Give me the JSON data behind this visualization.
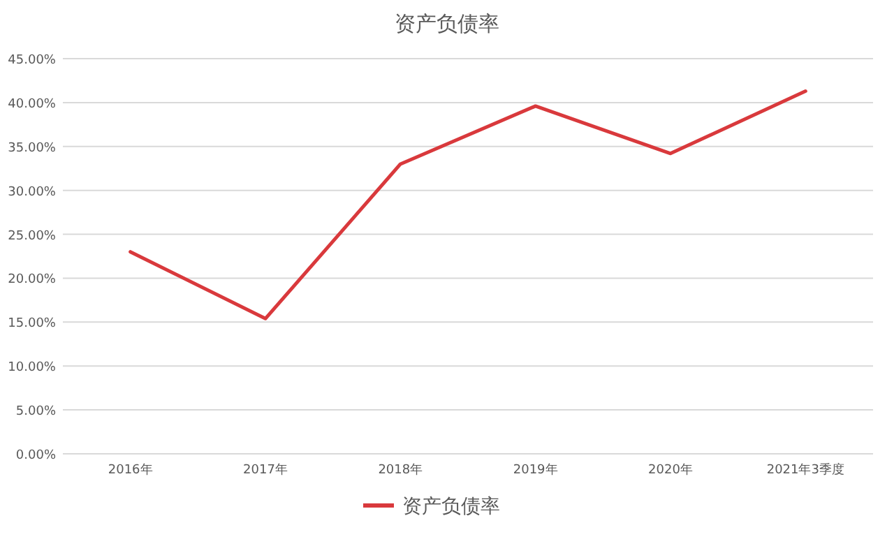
{
  "chart_data": {
    "type": "line",
    "title": "资产负债率",
    "categories": [
      "2016年",
      "2017年",
      "2018年",
      "2019年",
      "2020年",
      "2021年3季度"
    ],
    "series": [
      {
        "name": "资产负债率",
        "color": "#d9393c",
        "values": [
          23.0,
          15.4,
          33.0,
          39.6,
          34.2,
          41.3
        ]
      }
    ],
    "ylim": [
      0,
      45
    ],
    "yticks": [
      {
        "value": 0,
        "label": "0.00%"
      },
      {
        "value": 5,
        "label": "5.00%"
      },
      {
        "value": 10,
        "label": "10.00%"
      },
      {
        "value": 15,
        "label": "15.00%"
      },
      {
        "value": 20,
        "label": "20.00%"
      },
      {
        "value": 25,
        "label": "25.00%"
      },
      {
        "value": 30,
        "label": "30.00%"
      },
      {
        "value": 35,
        "label": "35.00%"
      },
      {
        "value": 40,
        "label": "40.00%"
      },
      {
        "value": 45,
        "label": "45.00%"
      }
    ],
    "grid": "y",
    "legend": "bottom",
    "marker": "none",
    "line_style": "solid"
  }
}
